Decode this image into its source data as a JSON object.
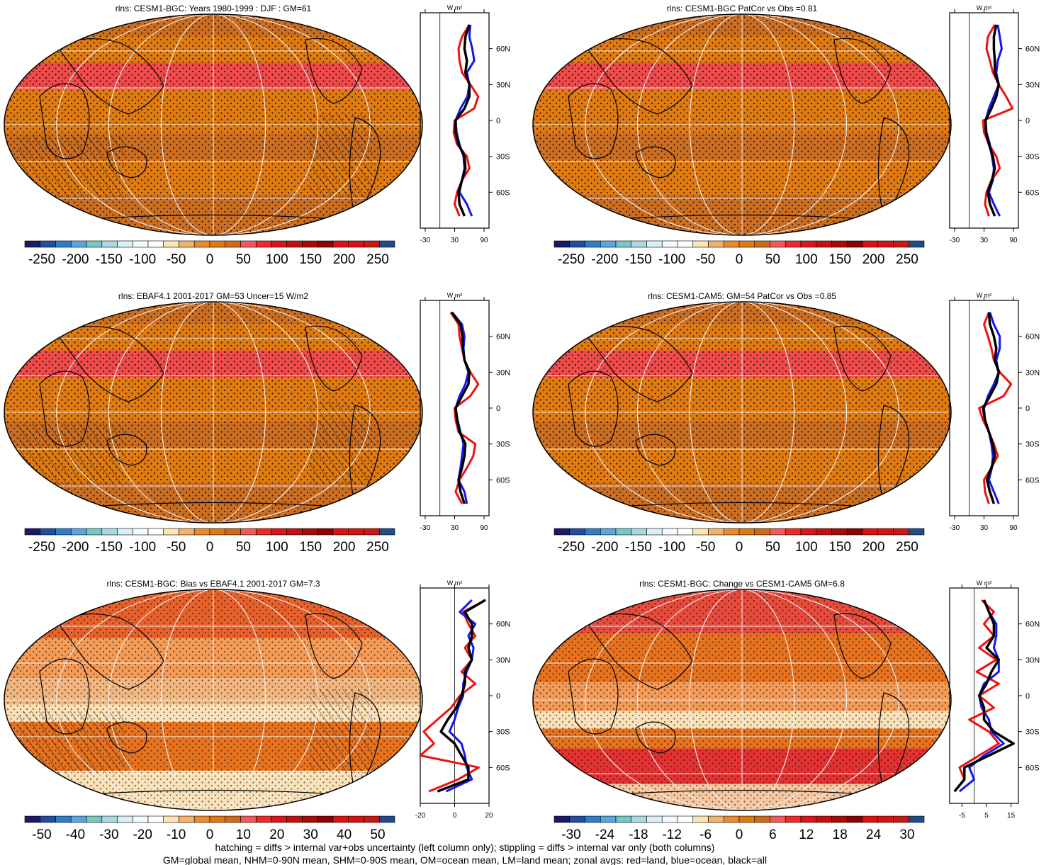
{
  "colors": {
    "scale": [
      "#1a1a66",
      "#1f4f9e",
      "#2c7fc8",
      "#5aa6e0",
      "#79c7c4",
      "#a9d8e6",
      "#d6f0f5",
      "#f2fafc",
      "#ffffff",
      "#fde4b5",
      "#f4b26b",
      "#ec8a2e",
      "#e07a10",
      "#cf6a1a",
      "#f25a5a",
      "#ec2a2a",
      "#d81818",
      "#c21010",
      "#a80a0a",
      "#8b0000",
      "#e01010",
      "#d41414",
      "#c81818",
      "#224b88"
    ],
    "land": "#cc6e22",
    "ocean": "#e07b12",
    "tropics": "#f04a4a",
    "grid": "#f0f0f0",
    "line_land": "#ee1111",
    "line_ocean": "#1515ee",
    "line_all": "#000000"
  },
  "chart_data": [
    {
      "id": "r1l",
      "type": "heatmap",
      "title": "rlns: CESM1-BGC: Years 1980-1999 : DJF : GM=61",
      "colorbar": [
        "-250",
        "-200",
        "-150",
        "-100",
        "-50",
        "0",
        "50",
        "100",
        "150",
        "200",
        "250"
      ],
      "zonal": {
        "title": "W m²",
        "xticks": [
          "-30",
          "30",
          "90"
        ],
        "xlim": [
          -40,
          100
        ],
        "xtick_values": [
          -30,
          30,
          90
        ],
        "lat_labels": [
          "60N",
          "30N",
          "0",
          "30S",
          "60S"
        ],
        "lat": [
          80,
          70,
          60,
          50,
          40,
          30,
          20,
          10,
          0,
          -10,
          -20,
          -30,
          -40,
          -50,
          -60,
          -70,
          -80
        ],
        "land": [
          60,
          45,
          38,
          40,
          45,
          62,
          78,
          70,
          30,
          28,
          35,
          55,
          60,
          45,
          35,
          30,
          40
        ],
        "ocean": [
          62,
          60,
          66,
          70,
          55,
          60,
          56,
          42,
          32,
          34,
          40,
          48,
          50,
          45,
          40,
          55,
          65
        ],
        "all": [
          60,
          52,
          50,
          55,
          52,
          60,
          60,
          50,
          32,
          32,
          38,
          50,
          52,
          45,
          38,
          40,
          50
        ]
      }
    },
    {
      "id": "r1r",
      "type": "heatmap",
      "title": "rlns: CESM1-BGC PatCor vs Obs =0.81",
      "colorbar": [
        "-250",
        "-200",
        "-150",
        "-100",
        "-50",
        "0",
        "50",
        "100",
        "150",
        "200",
        "250"
      ],
      "zonal": {
        "title": "W m²",
        "xticks": [
          "-30",
          "30",
          "90"
        ],
        "xlim": [
          -40,
          100
        ],
        "xtick_values": [
          -30,
          30,
          90
        ],
        "lat_labels": [
          "60N",
          "30N",
          "0",
          "30S",
          "60S"
        ],
        "lat": [
          80,
          70,
          60,
          50,
          40,
          30,
          20,
          10,
          0,
          -10,
          -20,
          -30,
          -40,
          -50,
          -60,
          -70,
          -80
        ],
        "land": [
          52,
          38,
          35,
          42,
          48,
          60,
          75,
          88,
          28,
          30,
          40,
          55,
          62,
          45,
          35,
          32,
          40
        ],
        "ocean": [
          58,
          62,
          66,
          58,
          55,
          60,
          50,
          40,
          33,
          35,
          42,
          46,
          50,
          48,
          40,
          50,
          62
        ],
        "all": [
          55,
          50,
          50,
          52,
          52,
          60,
          55,
          45,
          33,
          34,
          40,
          48,
          52,
          46,
          38,
          42,
          52
        ]
      }
    },
    {
      "id": "r2l",
      "type": "heatmap",
      "title": "rlns: EBAF4.1 2001-2017 GM=53 Uncer=15 W/m2",
      "colorbar": [
        "-250",
        "-200",
        "-150",
        "-100",
        "-50",
        "0",
        "50",
        "100",
        "150",
        "200",
        "250"
      ],
      "zonal": {
        "title": "W m²",
        "xticks": [
          "-30",
          "30",
          "90"
        ],
        "xlim": [
          -40,
          100
        ],
        "xtick_values": [
          -30,
          30,
          90
        ],
        "lat_labels": [
          "60N",
          "30N",
          "0",
          "30S",
          "60S"
        ],
        "lat": [
          80,
          70,
          60,
          50,
          40,
          30,
          20,
          10,
          0,
          -10,
          -20,
          -30,
          -40,
          -50,
          -60,
          -70,
          -80
        ],
        "land": [
          22,
          38,
          40,
          45,
          50,
          62,
          78,
          62,
          30,
          32,
          38,
          72,
          68,
          55,
          40,
          32,
          45
        ],
        "ocean": [
          25,
          45,
          50,
          48,
          50,
          58,
          52,
          40,
          32,
          36,
          42,
          48,
          45,
          42,
          38,
          50,
          55
        ],
        "all": [
          24,
          42,
          46,
          47,
          50,
          60,
          58,
          45,
          32,
          35,
          40,
          52,
          50,
          45,
          38,
          42,
          50
        ]
      }
    },
    {
      "id": "r2r",
      "type": "heatmap",
      "title": "rlns: CESM1-CAM5: GM=54 PatCor vs Obs =0.85",
      "colorbar": [
        "-250",
        "-200",
        "-150",
        "-100",
        "-50",
        "0",
        "50",
        "100",
        "150",
        "200",
        "250"
      ],
      "zonal": {
        "title": "W m²",
        "xticks": [
          "-30",
          "30",
          "90"
        ],
        "xlim": [
          -40,
          100
        ],
        "xtick_values": [
          -30,
          30,
          90
        ],
        "lat_labels": [
          "60N",
          "30N",
          "0",
          "30S",
          "60S"
        ],
        "lat": [
          80,
          70,
          60,
          50,
          40,
          30,
          20,
          10,
          0,
          -10,
          -20,
          -30,
          -40,
          -50,
          -60,
          -70,
          -80
        ],
        "land": [
          40,
          30,
          38,
          45,
          50,
          62,
          85,
          70,
          20,
          28,
          40,
          50,
          58,
          45,
          30,
          32,
          40
        ],
        "ocean": [
          42,
          50,
          62,
          62,
          55,
          60,
          50,
          38,
          30,
          32,
          40,
          45,
          48,
          46,
          40,
          50,
          60
        ],
        "all": [
          40,
          42,
          50,
          55,
          52,
          60,
          55,
          42,
          28,
          32,
          40,
          48,
          52,
          45,
          36,
          42,
          50
        ]
      }
    },
    {
      "id": "r3l",
      "type": "heatmap",
      "title": "rlns: CESM1-BGC: Bias vs EBAF4.1 2001-2017 GM=7.3",
      "colorbar": [
        "-50",
        "-40",
        "-30",
        "-20",
        "-10",
        "0",
        "10",
        "20",
        "30",
        "40",
        "50"
      ],
      "zonal": {
        "title": "W m²",
        "xticks": [
          "-20",
          "0",
          "20"
        ],
        "xlim": [
          -20,
          20
        ],
        "xtick_values": [
          -20,
          0,
          20
        ],
        "lat_labels": [
          "60N",
          "30N",
          "0",
          "30S",
          "60S"
        ],
        "lat": [
          80,
          70,
          60,
          50,
          40,
          30,
          20,
          10,
          0,
          -10,
          -20,
          -30,
          -40,
          -50,
          -60,
          -70,
          -80
        ],
        "land": [
          18,
          5,
          8,
          12,
          6,
          10,
          4,
          12,
          3,
          -2,
          -10,
          -18,
          -12,
          -20,
          14,
          2,
          -15
        ],
        "ocean": [
          10,
          3,
          12,
          8,
          11,
          10,
          7,
          5,
          5,
          2,
          0,
          -3,
          4,
          6,
          7,
          10,
          -5
        ],
        "all": [
          18,
          6,
          10,
          10,
          8,
          10,
          6,
          6,
          4,
          1,
          -4,
          -8,
          0,
          4,
          8,
          8,
          -10
        ]
      }
    },
    {
      "id": "r3r",
      "type": "heatmap",
      "title": "rlns: CESM1-BGC: Change vs CESM1-CAM5 GM=6.8",
      "colorbar": [
        "-30",
        "-24",
        "-18",
        "-12",
        "-6",
        "0",
        "6",
        "12",
        "18",
        "24",
        "30"
      ],
      "zonal": {
        "title": "W m²",
        "xticks": [
          "-5",
          "5",
          "15"
        ],
        "xlim": [
          -10,
          18
        ],
        "xtick_values": [
          -5,
          5,
          15
        ],
        "lat_labels": [
          "60N",
          "30N",
          "0",
          "30S",
          "60S"
        ],
        "lat": [
          80,
          70,
          60,
          50,
          40,
          30,
          20,
          10,
          0,
          -10,
          -20,
          -30,
          -40,
          -50,
          -60,
          -70,
          -80
        ],
        "land": [
          3,
          8,
          4,
          8,
          2,
          9,
          1,
          10,
          2,
          8,
          -2,
          6,
          10,
          2,
          -6,
          -4,
          -8
        ],
        "ocean": [
          4,
          6,
          9,
          9,
          8,
          10,
          10,
          4,
          2,
          3,
          6,
          7,
          12,
          4,
          -2,
          0,
          -6
        ],
        "all": [
          4,
          6,
          8,
          8,
          5,
          10,
          7,
          5,
          2,
          4,
          4,
          8,
          16,
          6,
          -4,
          -4,
          -8
        ]
      }
    }
  ],
  "footer": {
    "line1": "hatching = diffs > internal var+obs uncertainty (left column only); stippling = diffs > internal var only (both columns)",
    "line2": "GM=global mean, NHM=0-90N mean, SHM=0-90S mean, OM=ocean mean, LM=land mean; zonal avgs: red=land, blue=ocean, black=all"
  }
}
